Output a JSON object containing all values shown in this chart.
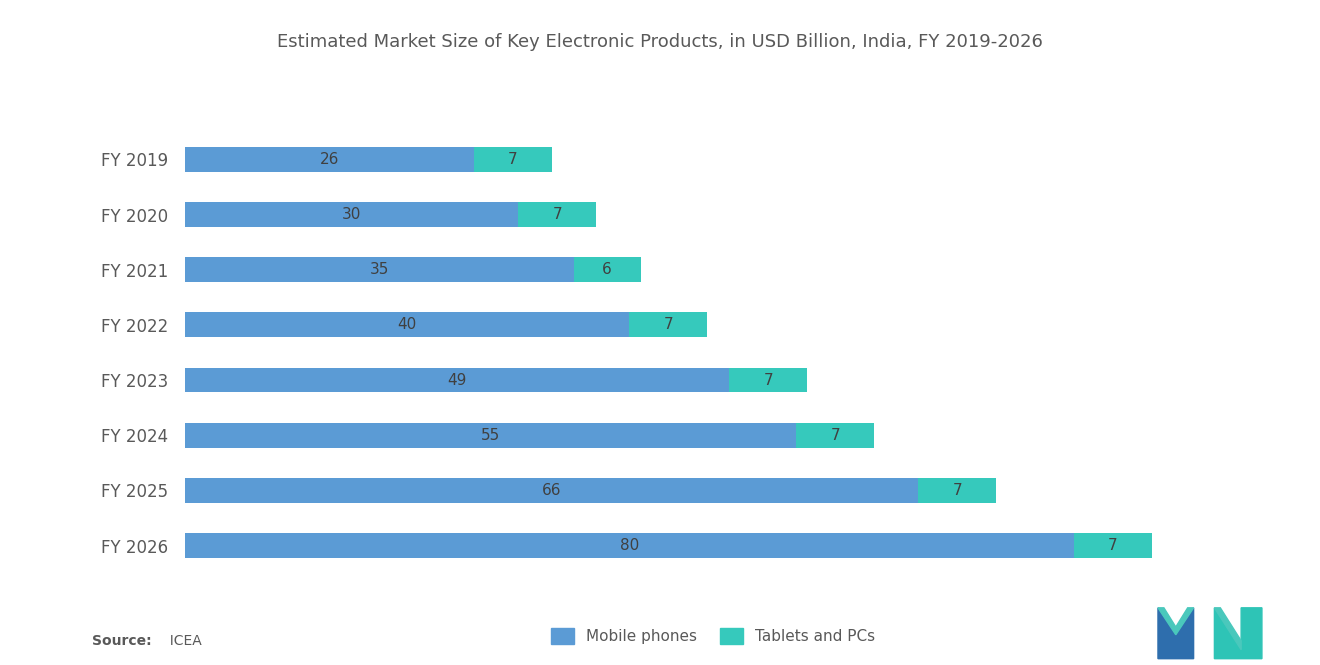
{
  "title": "Estimated Market Size of Key Electronic Products, in USD Billion, India, FY 2019-2026",
  "categories": [
    "FY 2019",
    "FY 2020",
    "FY 2021",
    "FY 2022",
    "FY 2023",
    "FY 2024",
    "FY 2025",
    "FY 2026"
  ],
  "mobile_phones": [
    26,
    30,
    35,
    40,
    49,
    55,
    66,
    80
  ],
  "tablets_pcs": [
    7,
    7,
    6,
    7,
    7,
    7,
    7,
    7
  ],
  "mobile_color": "#5B9BD5",
  "tablet_color": "#36C9BC",
  "background_color": "#FFFFFF",
  "title_color": "#595959",
  "label_color": "#404040",
  "bar_height": 0.45,
  "source_bold": "Source:",
  "source_rest": "  ICEA",
  "legend_mobile": "Mobile phones",
  "legend_tablet": "Tablets and PCs",
  "xlim": [
    0,
    95
  ]
}
